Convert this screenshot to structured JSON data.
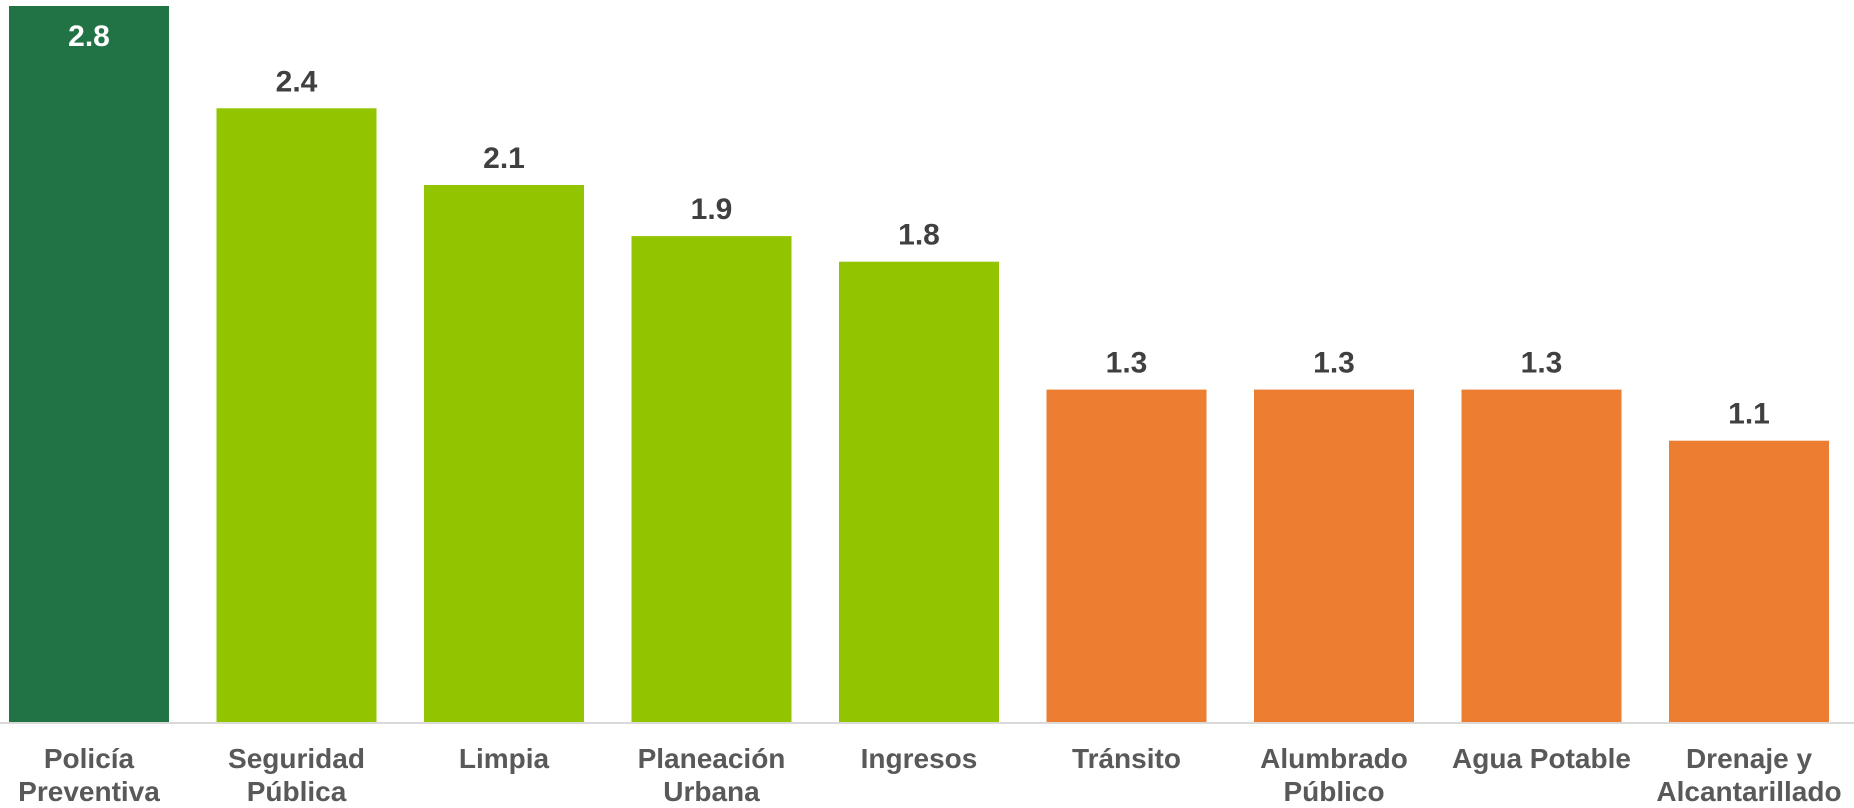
{
  "chart_data": {
    "type": "bar",
    "categories": [
      [
        "Policía",
        "Preventiva"
      ],
      [
        "Seguridad",
        "Pública"
      ],
      [
        "Limpia"
      ],
      [
        "Planeación",
        "Urbana"
      ],
      [
        "Ingresos"
      ],
      [
        "Tránsito"
      ],
      [
        "Alumbrado",
        "Público"
      ],
      [
        "Agua Potable"
      ],
      [
        "Drenaje y",
        "Alcantarillado"
      ]
    ],
    "values": [
      2.8,
      2.4,
      2.1,
      1.9,
      1.8,
      1.3,
      1.3,
      1.3,
      1.1
    ],
    "value_labels": [
      "2.8",
      "2.4",
      "2.1",
      "1.9",
      "1.8",
      "1.3",
      "1.3",
      "1.3",
      "1.1"
    ],
    "bar_colors": [
      "#217346",
      "#92c400",
      "#92c400",
      "#92c400",
      "#92c400",
      "#ed7d31",
      "#ed7d31",
      "#ed7d31",
      "#ed7d31"
    ],
    "ylim": [
      0,
      2.8
    ],
    "grid": false,
    "legend": "none",
    "axis_color": "#d9d9d9"
  }
}
